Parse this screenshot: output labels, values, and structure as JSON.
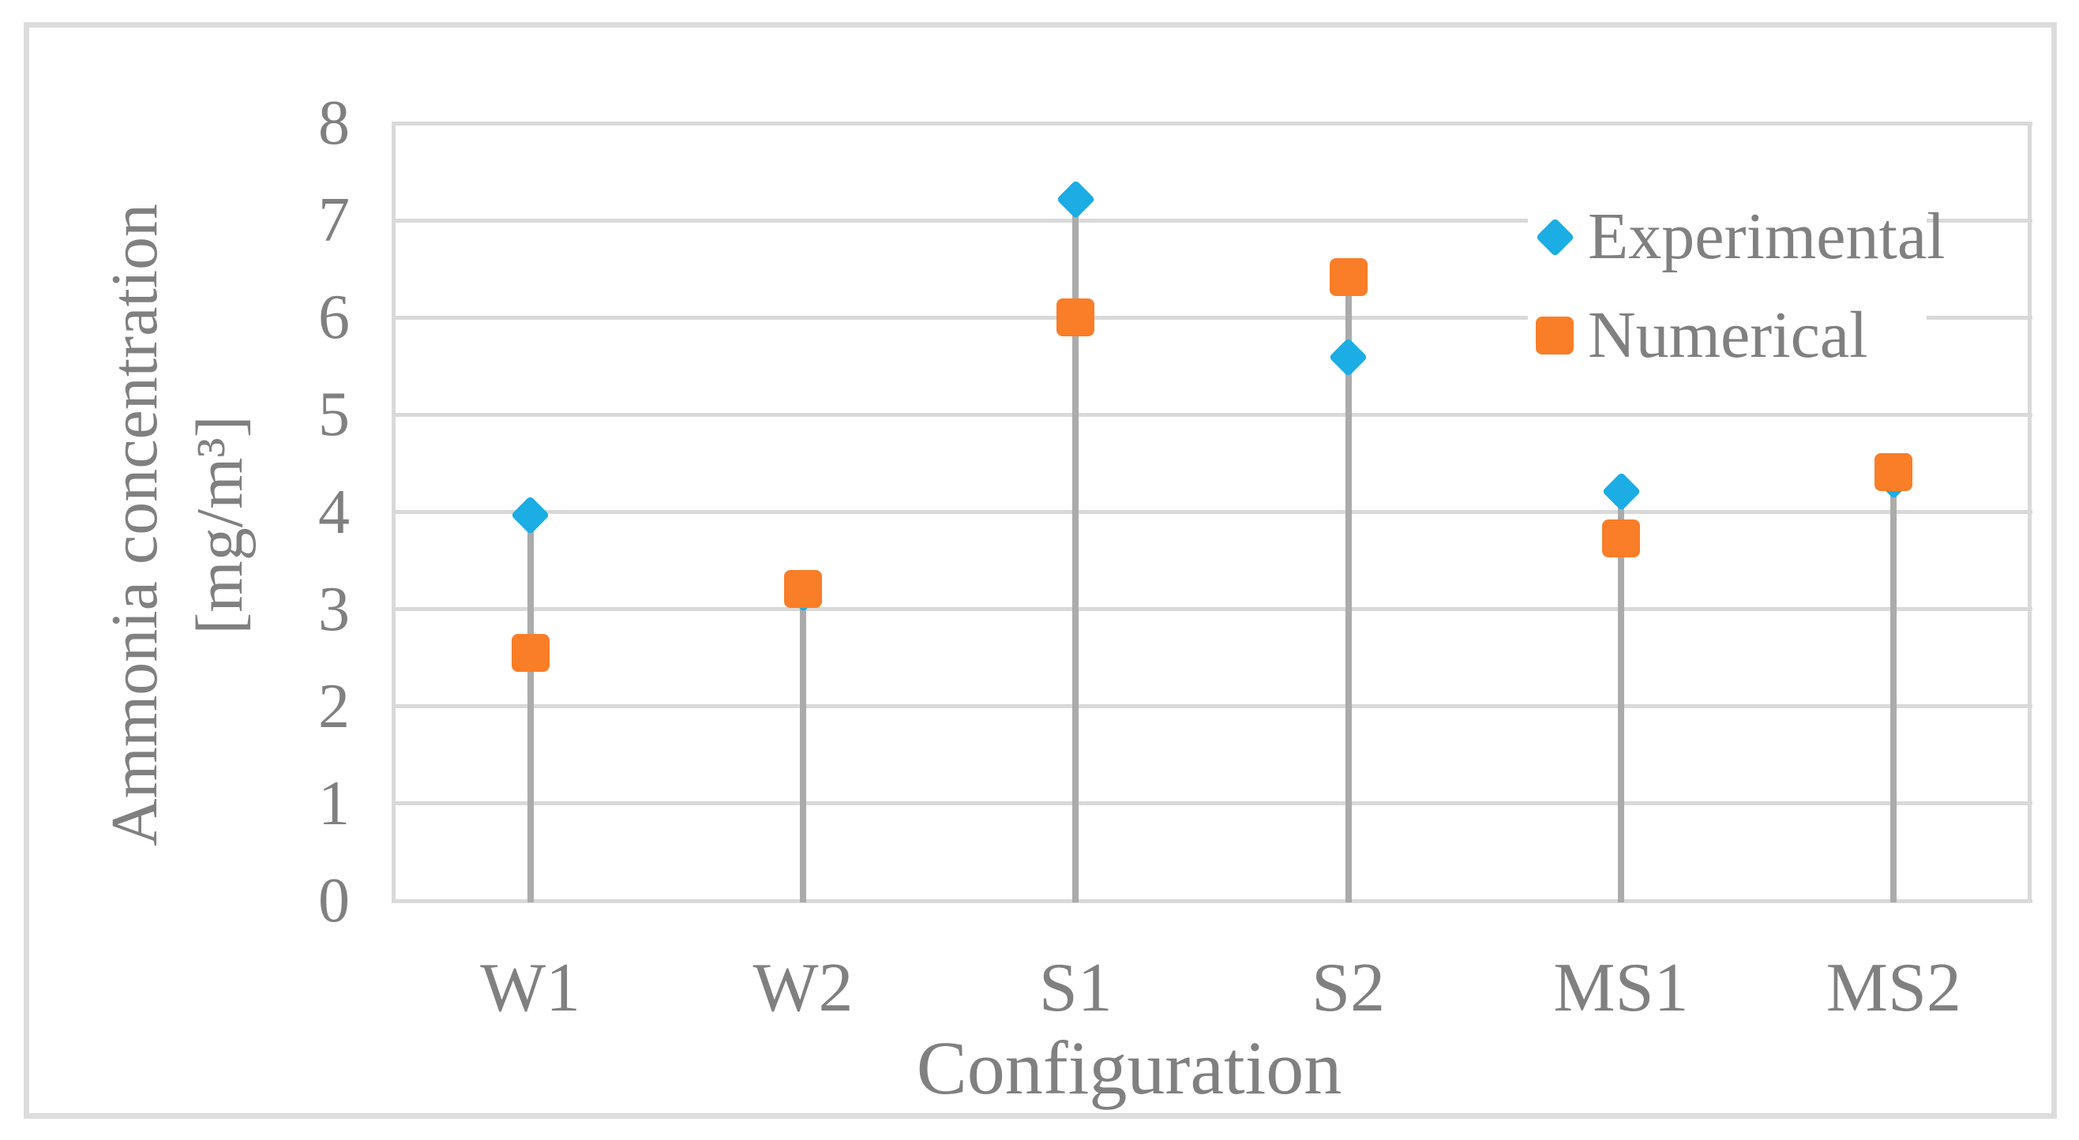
{
  "figure": {
    "y_axis": {
      "title_line1": "Ammonia concentration",
      "title_line2": "[mg/m³]",
      "min": 0,
      "max": 8,
      "step": 1,
      "tick_labels": [
        "0",
        "1",
        "2",
        "3",
        "4",
        "5",
        "6",
        "7",
        "8"
      ]
    },
    "x_axis": {
      "title": "Configuration"
    },
    "legend": [
      {
        "name": "Experimental",
        "marker": "diamond",
        "color": "#1CADE4"
      },
      {
        "name": "Numerical",
        "marker": "square",
        "color": "#FA7D28"
      }
    ]
  },
  "chart_data": {
    "type": "scatter",
    "title": "",
    "xlabel": "Configuration",
    "ylabel": "Ammonia concentration [mg/m³]",
    "categories": [
      "W1",
      "W2",
      "S1",
      "S2",
      "MS1",
      "MS2"
    ],
    "series": [
      {
        "name": "Experimental",
        "marker": "diamond",
        "color": "#1CADE4",
        "values": [
          3.97,
          3.17,
          7.22,
          5.59,
          4.21,
          4.33
        ]
      },
      {
        "name": "Numerical",
        "marker": "square",
        "color": "#FA7D28",
        "values": [
          2.55,
          3.21,
          6.0,
          6.42,
          3.73,
          4.41
        ]
      }
    ],
    "ylim": [
      0,
      8
    ],
    "grid": true,
    "gridline_color": "#D9D9D9",
    "drop_line_color": "#ABABAB",
    "frame_color": "#DCDCDC",
    "text_color": "#808080",
    "legend_position": "inside-top-right"
  }
}
